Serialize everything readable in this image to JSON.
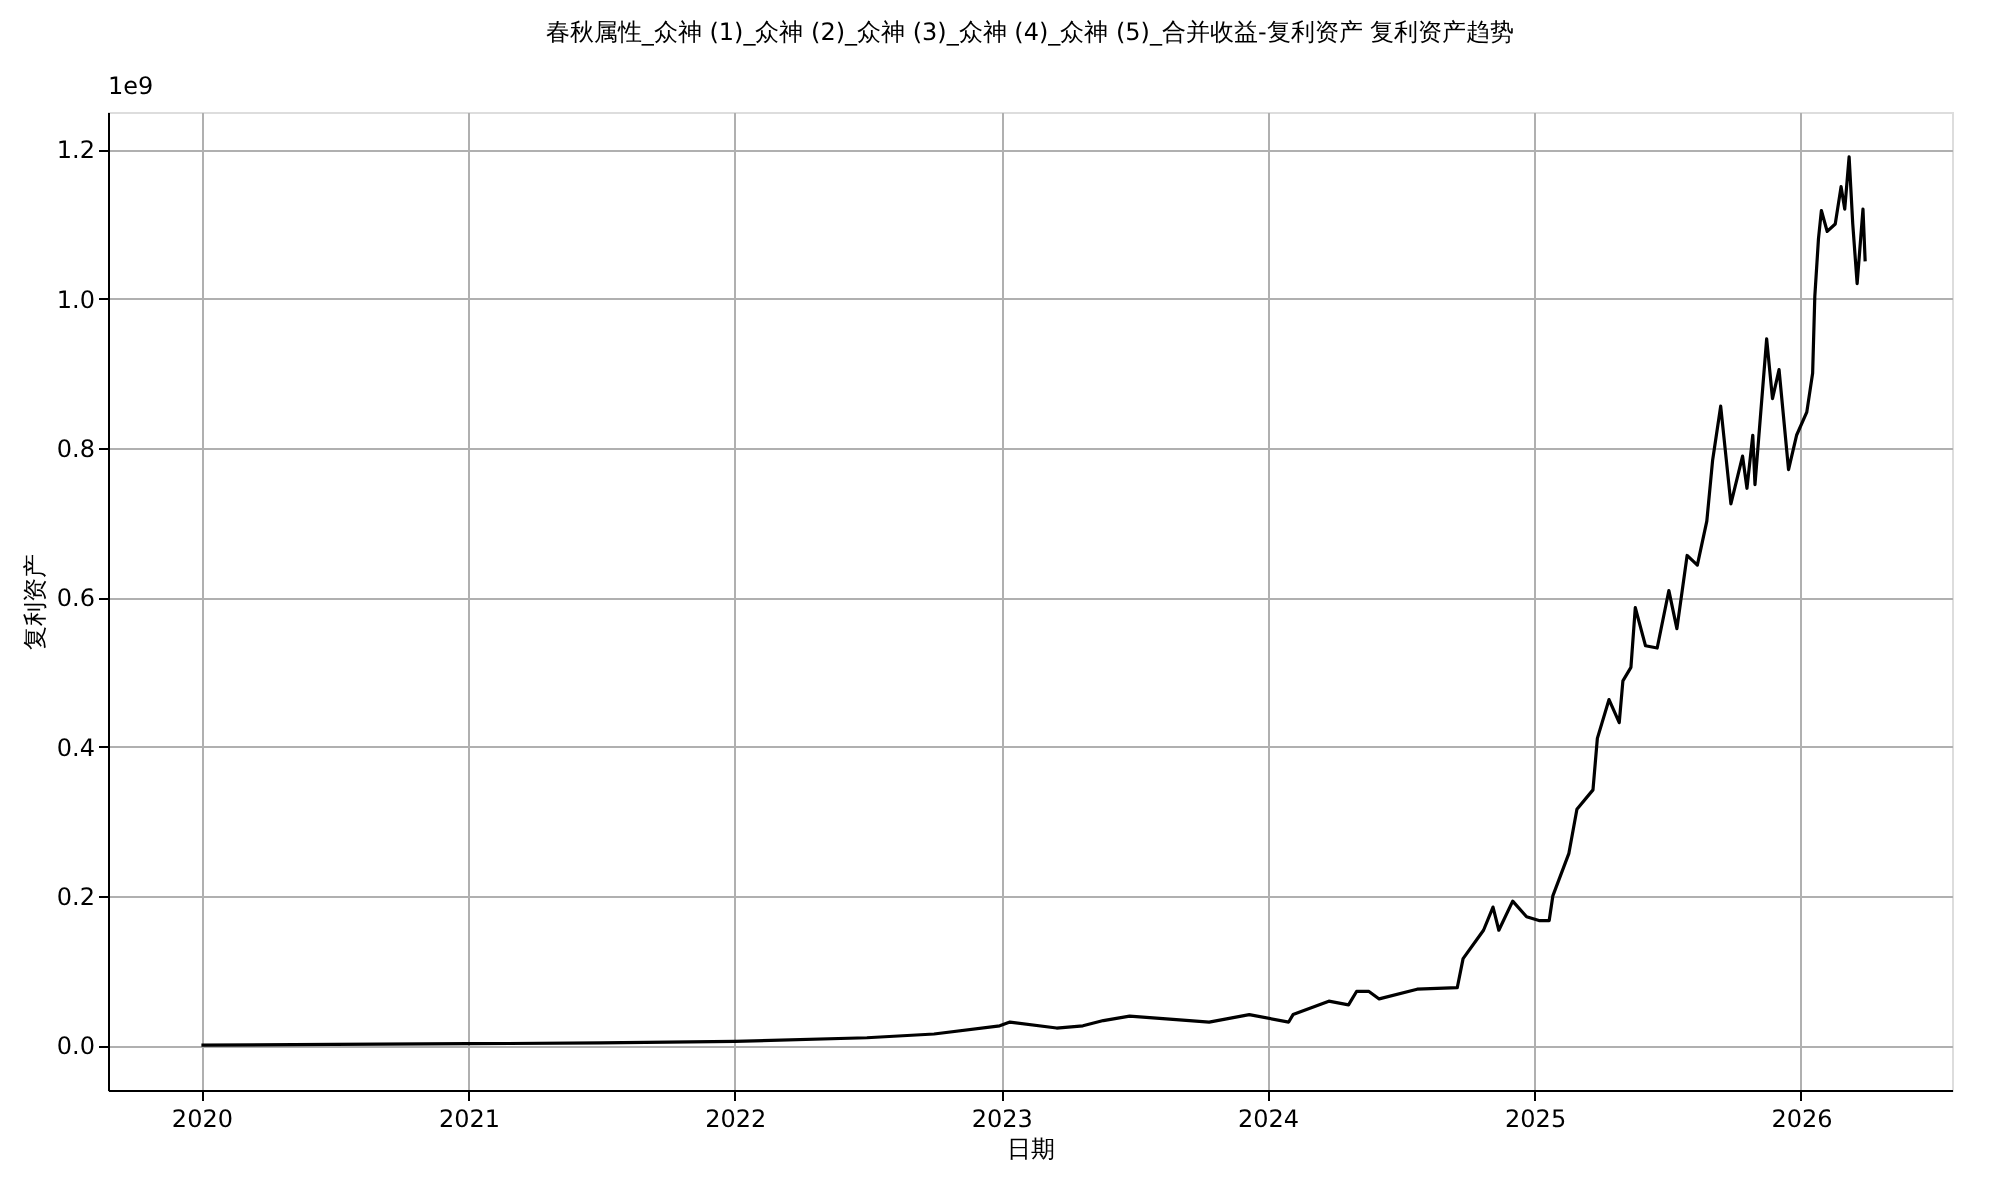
{
  "chart_data": {
    "type": "line",
    "title": "春秋属性_众神 (1)_众神 (2)_众神 (3)_众神 (4)_众神 (5)_合并收益-复利资产 复利资产趋势",
    "xlabel": "日期",
    "ylabel": "复利资产",
    "annotations": [
      "1e9"
    ],
    "x": [
      "2020-01-01",
      "2020-07-01",
      "2021-01-01",
      "2021-07-01",
      "2022-01-01",
      "2022-07-01",
      "2022-10-01",
      "2022-12-30",
      "2023-01-13",
      "2023-03-18",
      "2023-04-23",
      "2023-05-21",
      "2023-06-26",
      "2023-09-16",
      "2023-10-13",
      "2023-12-07",
      "2024-01-30",
      "2024-02-05",
      "2024-03-25",
      "2024-04-21",
      "2024-05-02",
      "2024-05-19",
      "2024-06-02",
      "2024-07-24",
      "2024-09-17",
      "2024-09-25",
      "2024-10-23",
      "2024-11-05",
      "2024-11-13",
      "2024-12-02",
      "2024-12-21",
      "2025-01-07",
      "2025-01-21",
      "2025-01-26",
      "2025-02-17",
      "2025-02-28",
      "2025-03-22",
      "2025-03-28",
      "2025-04-13",
      "2025-04-27",
      "2025-05-02",
      "2025-05-13",
      "2025-05-19",
      "2025-06-02",
      "2025-06-18",
      "2025-07-04",
      "2025-07-15",
      "2025-07-29",
      "2025-08-12",
      "2025-08-25",
      "2025-09-02",
      "2025-09-13",
      "2025-09-27",
      "2025-10-13",
      "2025-10-19",
      "2025-10-27",
      "2025-10-30",
      "2025-11-15",
      "2025-11-23",
      "2025-12-02",
      "2025-12-15",
      "2025-12-26",
      "2026-01-09",
      "2026-01-17",
      "2026-01-20",
      "2026-01-25",
      "2026-01-29",
      "2026-02-06",
      "2026-02-17",
      "2026-02-25",
      "2026-03-02",
      "2026-03-08",
      "2026-03-13",
      "2026-03-19",
      "2026-03-27",
      "2026-03-30"
    ],
    "series": [
      {
        "color": "#000000",
        "values": [
          0,
          0.001,
          0.002,
          0.003,
          0.005,
          0.01,
          0.015,
          0.026,
          0.031,
          0.023,
          0.026,
          0.033,
          0.039,
          0.033,
          0.031,
          0.041,
          0.031,
          0.041,
          0.059,
          0.054,
          0.072,
          0.072,
          0.062,
          0.075,
          0.077,
          0.116,
          0.154,
          0.185,
          0.154,
          0.193,
          0.172,
          0.167,
          0.167,
          0.2,
          0.257,
          0.316,
          0.342,
          0.411,
          0.463,
          0.432,
          0.488,
          0.506,
          0.586,
          0.535,
          0.532,
          0.609,
          0.558,
          0.656,
          0.643,
          0.702,
          0.784,
          0.856,
          0.725,
          0.789,
          0.746,
          0.817,
          0.751,
          0.946,
          0.866,
          0.905,
          0.771,
          0.817,
          0.848,
          0.9,
          1.003,
          1.08,
          1.118,
          1.09,
          1.1,
          1.15,
          1.12,
          1.19,
          1.1,
          1.02,
          1.12,
          1.05
        ]
      }
    ],
    "xlim": [
      "2019-08-26",
      "2026-07-27"
    ],
    "xticks": [
      "2020",
      "2021",
      "2022",
      "2023",
      "2024",
      "2025",
      "2026"
    ],
    "ylim": [
      -0.06,
      1.25
    ],
    "yticks": [
      {
        "value": 0,
        "label": "0.0"
      },
      {
        "value": 0.2,
        "label": "0.2"
      },
      {
        "value": 0.4,
        "label": "0.4"
      },
      {
        "value": 0.6,
        "label": "0.6"
      },
      {
        "value": 0.8,
        "label": "0.8"
      },
      {
        "value": 1,
        "label": "1.0"
      },
      {
        "value": 1.2,
        "label": "1.2"
      }
    ],
    "grid": true,
    "line_style": "solid",
    "marker": "none"
  }
}
